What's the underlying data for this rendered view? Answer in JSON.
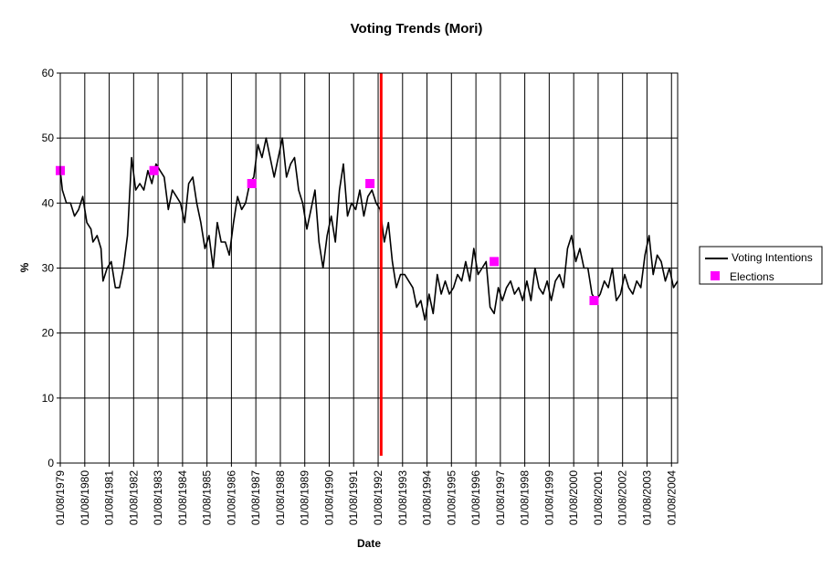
{
  "chart_data": {
    "type": "line",
    "title": "Voting Trends (Mori)",
    "xlabel": "Date",
    "ylabel": "%",
    "ylim": [
      0,
      60
    ],
    "yticks": [
      "0",
      "10",
      "20",
      "30",
      "40",
      "50",
      "60"
    ],
    "xlim": [
      "1979-08-01",
      "2004-11-01"
    ],
    "xticks": [
      "01/08/1979",
      "01/08/1980",
      "01/08/1981",
      "01/08/1982",
      "01/08/1983",
      "01/08/1984",
      "01/08/1985",
      "01/08/1986",
      "01/08/1987",
      "01/08/1988",
      "01/08/1989",
      "01/08/1990",
      "01/08/1991",
      "01/08/1992",
      "01/08/1993",
      "01/08/1994",
      "01/08/1995",
      "01/08/1996",
      "01/08/1997",
      "01/08/1998",
      "01/08/1999",
      "01/08/2000",
      "01/08/2001",
      "01/08/2002",
      "01/08/2003",
      "01/08/2004"
    ],
    "grid": true,
    "legend_position": "right",
    "marker_line": {
      "x": "1992-09-15",
      "color": "#ff0000"
    },
    "series": [
      {
        "name": "Voting Intentions",
        "color": "#000000",
        "points": [
          [
            "1979-08-01",
            45
          ],
          [
            "1979-09-01",
            42
          ],
          [
            "1979-11-01",
            40
          ],
          [
            "1980-01-01",
            40
          ],
          [
            "1980-03-01",
            38
          ],
          [
            "1980-05-01",
            39
          ],
          [
            "1980-07-01",
            41
          ],
          [
            "1980-09-01",
            37
          ],
          [
            "1980-11-01",
            36
          ],
          [
            "1980-12-01",
            34
          ],
          [
            "1981-02-01",
            35
          ],
          [
            "1981-04-01",
            33
          ],
          [
            "1981-05-01",
            28
          ],
          [
            "1981-07-01",
            30
          ],
          [
            "1981-09-01",
            31
          ],
          [
            "1981-11-01",
            27
          ],
          [
            "1982-01-01",
            27
          ],
          [
            "1982-03-01",
            30
          ],
          [
            "1982-05-01",
            35
          ],
          [
            "1982-07-01",
            47
          ],
          [
            "1982-09-01",
            42
          ],
          [
            "1982-11-01",
            43
          ],
          [
            "1983-01-01",
            42
          ],
          [
            "1983-03-01",
            45
          ],
          [
            "1983-05-01",
            43
          ],
          [
            "1983-07-01",
            46
          ],
          [
            "1983-09-01",
            45
          ],
          [
            "1983-11-01",
            44
          ],
          [
            "1984-01-01",
            39
          ],
          [
            "1984-03-01",
            42
          ],
          [
            "1984-05-01",
            41
          ],
          [
            "1984-07-01",
            40
          ],
          [
            "1984-09-01",
            37
          ],
          [
            "1984-11-01",
            43
          ],
          [
            "1985-01-01",
            44
          ],
          [
            "1985-03-01",
            40
          ],
          [
            "1985-05-01",
            37
          ],
          [
            "1985-07-01",
            33
          ],
          [
            "1985-09-01",
            35
          ],
          [
            "1985-11-01",
            30
          ],
          [
            "1986-01-01",
            37
          ],
          [
            "1986-03-01",
            34
          ],
          [
            "1986-05-01",
            34
          ],
          [
            "1986-07-01",
            32
          ],
          [
            "1986-09-01",
            37
          ],
          [
            "1986-11-01",
            41
          ],
          [
            "1987-01-01",
            39
          ],
          [
            "1987-03-01",
            40
          ],
          [
            "1987-05-01",
            43
          ],
          [
            "1987-07-01",
            44
          ],
          [
            "1987-09-01",
            49
          ],
          [
            "1987-11-01",
            47
          ],
          [
            "1988-01-01",
            50
          ],
          [
            "1988-03-01",
            47
          ],
          [
            "1988-05-01",
            44
          ],
          [
            "1988-07-01",
            47
          ],
          [
            "1988-09-01",
            50
          ],
          [
            "1988-11-01",
            44
          ],
          [
            "1989-01-01",
            46
          ],
          [
            "1989-03-01",
            47
          ],
          [
            "1989-05-01",
            42
          ],
          [
            "1989-07-01",
            40
          ],
          [
            "1989-09-01",
            36
          ],
          [
            "1989-11-01",
            39
          ],
          [
            "1990-01-01",
            42
          ],
          [
            "1990-03-01",
            34
          ],
          [
            "1990-05-01",
            30
          ],
          [
            "1990-07-01",
            35
          ],
          [
            "1990-09-01",
            38
          ],
          [
            "1990-11-01",
            34
          ],
          [
            "1991-01-01",
            42
          ],
          [
            "1991-03-01",
            46
          ],
          [
            "1991-05-01",
            38
          ],
          [
            "1991-07-01",
            40
          ],
          [
            "1991-09-01",
            39
          ],
          [
            "1991-11-01",
            42
          ],
          [
            "1992-01-01",
            38
          ],
          [
            "1992-03-01",
            41
          ],
          [
            "1992-05-01",
            42
          ],
          [
            "1992-07-01",
            40
          ],
          [
            "1992-09-01",
            39
          ],
          [
            "1992-11-01",
            34
          ],
          [
            "1993-01-01",
            37
          ],
          [
            "1993-03-01",
            31
          ],
          [
            "1993-05-01",
            27
          ],
          [
            "1993-07-01",
            29
          ],
          [
            "1993-09-01",
            29
          ],
          [
            "1993-11-01",
            28
          ],
          [
            "1994-01-01",
            27
          ],
          [
            "1994-03-01",
            24
          ],
          [
            "1994-05-01",
            25
          ],
          [
            "1994-07-01",
            22
          ],
          [
            "1994-09-01",
            26
          ],
          [
            "1994-11-01",
            23
          ],
          [
            "1995-01-01",
            29
          ],
          [
            "1995-03-01",
            26
          ],
          [
            "1995-05-01",
            28
          ],
          [
            "1995-07-01",
            26
          ],
          [
            "1995-09-01",
            27
          ],
          [
            "1995-11-01",
            29
          ],
          [
            "1996-01-01",
            28
          ],
          [
            "1996-03-01",
            31
          ],
          [
            "1996-05-01",
            28
          ],
          [
            "1996-07-01",
            33
          ],
          [
            "1996-09-01",
            29
          ],
          [
            "1996-11-01",
            30
          ],
          [
            "1997-01-01",
            31
          ],
          [
            "1997-03-01",
            24
          ],
          [
            "1997-05-01",
            23
          ],
          [
            "1997-07-01",
            27
          ],
          [
            "1997-09-01",
            25
          ],
          [
            "1997-11-01",
            27
          ],
          [
            "1998-01-01",
            28
          ],
          [
            "1998-03-01",
            26
          ],
          [
            "1998-05-01",
            27
          ],
          [
            "1998-07-01",
            25
          ],
          [
            "1998-09-01",
            28
          ],
          [
            "1998-11-01",
            25
          ],
          [
            "1999-01-01",
            30
          ],
          [
            "1999-03-01",
            27
          ],
          [
            "1999-05-01",
            26
          ],
          [
            "1999-07-01",
            28
          ],
          [
            "1999-09-01",
            25
          ],
          [
            "1999-11-01",
            28
          ],
          [
            "2000-01-01",
            29
          ],
          [
            "2000-03-01",
            27
          ],
          [
            "2000-05-01",
            33
          ],
          [
            "2000-07-01",
            35
          ],
          [
            "2000-09-01",
            31
          ],
          [
            "2000-11-01",
            33
          ],
          [
            "2001-01-01",
            30
          ],
          [
            "2001-03-01",
            30
          ],
          [
            "2001-05-01",
            26
          ],
          [
            "2001-07-01",
            25
          ],
          [
            "2001-09-01",
            26
          ],
          [
            "2001-11-01",
            28
          ],
          [
            "2002-01-01",
            27
          ],
          [
            "2002-03-01",
            30
          ],
          [
            "2002-05-01",
            25
          ],
          [
            "2002-07-01",
            26
          ],
          [
            "2002-09-01",
            29
          ],
          [
            "2002-11-01",
            27
          ],
          [
            "2003-01-01",
            26
          ],
          [
            "2003-03-01",
            28
          ],
          [
            "2003-05-01",
            27
          ],
          [
            "2003-07-01",
            32
          ],
          [
            "2003-09-01",
            35
          ],
          [
            "2003-11-01",
            29
          ],
          [
            "2004-01-01",
            32
          ],
          [
            "2004-03-01",
            31
          ],
          [
            "2004-05-01",
            28
          ],
          [
            "2004-07-01",
            30
          ],
          [
            "2004-09-01",
            27
          ],
          [
            "2004-11-01",
            28
          ]
        ]
      },
      {
        "name": "Elections",
        "color": "#ff00ff",
        "marker": "square",
        "points": [
          [
            "1979-08-01",
            45
          ],
          [
            "1983-06-01",
            45
          ],
          [
            "1987-06-01",
            43
          ],
          [
            "1992-04-01",
            43
          ],
          [
            "1997-05-01",
            31
          ],
          [
            "2001-06-01",
            25
          ]
        ]
      }
    ]
  }
}
